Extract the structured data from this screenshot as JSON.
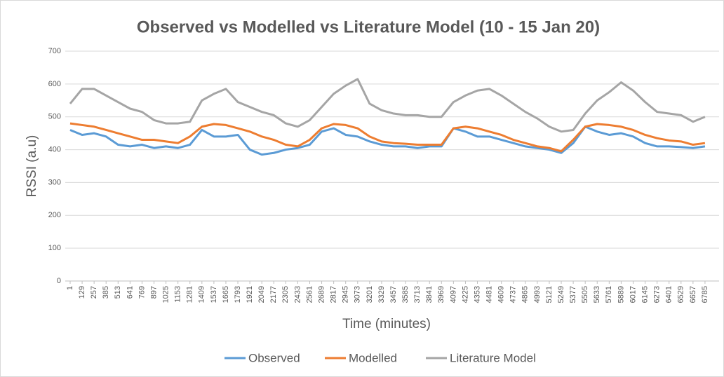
{
  "chart_data": {
    "type": "line",
    "title": "Observed vs Modelled vs Literature Model (10 - 15 Jan 20)",
    "x_label": "Time (minutes)",
    "y_label": "RSSI (a.u)",
    "x": [
      1,
      129,
      257,
      385,
      513,
      641,
      769,
      897,
      1025,
      1153,
      1281,
      1409,
      1537,
      1665,
      1793,
      1921,
      2049,
      2177,
      2305,
      2433,
      2561,
      2689,
      2817,
      2945,
      3073,
      3201,
      3329,
      3457,
      3585,
      3713,
      3841,
      3969,
      4097,
      4225,
      4353,
      4481,
      4609,
      4737,
      4865,
      4993,
      5121,
      5249,
      5377,
      5505,
      5633,
      5761,
      5889,
      6017,
      6145,
      6273,
      6401,
      6529,
      6657,
      6785
    ],
    "xticks": [
      1,
      129,
      257,
      385,
      513,
      641,
      769,
      897,
      1025,
      1153,
      1281,
      1409,
      1537,
      1665,
      1793,
      1921,
      2049,
      2177,
      2305,
      2433,
      2561,
      2689,
      2817,
      2945,
      3073,
      3201,
      3329,
      3457,
      3585,
      3713,
      3841,
      3969,
      4097,
      4225,
      4353,
      4481,
      4609,
      4737,
      4865,
      4993,
      5121,
      5249,
      5377,
      5505,
      5633,
      5761,
      5889,
      6017,
      6145,
      6273,
      6401,
      6529,
      6657,
      6785
    ],
    "xlim": [
      1,
      6913
    ],
    "ylim": [
      0,
      700
    ],
    "yticks": [
      0,
      100,
      200,
      300,
      400,
      500,
      600,
      700
    ],
    "grid": true,
    "legend": "bottom",
    "series": [
      {
        "name": "Observed",
        "color": "#5b9bd5",
        "values": [
          460,
          445,
          450,
          440,
          415,
          410,
          415,
          405,
          410,
          405,
          415,
          460,
          440,
          440,
          445,
          400,
          385,
          390,
          400,
          405,
          415,
          455,
          465,
          445,
          440,
          425,
          415,
          410,
          410,
          405,
          410,
          410,
          465,
          455,
          440,
          440,
          430,
          420,
          410,
          405,
          400,
          390,
          420,
          470,
          455,
          445,
          450,
          440,
          420,
          410,
          410,
          408,
          405,
          410
        ]
      },
      {
        "name": "Modelled",
        "color": "#ed7d31",
        "values": [
          480,
          475,
          470,
          460,
          450,
          440,
          430,
          430,
          425,
          420,
          440,
          470,
          478,
          475,
          465,
          455,
          440,
          430,
          415,
          410,
          430,
          465,
          478,
          475,
          465,
          440,
          425,
          420,
          418,
          415,
          415,
          415,
          465,
          470,
          465,
          455,
          445,
          430,
          420,
          410,
          405,
          395,
          430,
          470,
          478,
          475,
          470,
          460,
          445,
          435,
          428,
          425,
          415,
          420
        ]
      },
      {
        "name": "Literature Model",
        "color": "#a5a5a5",
        "values": [
          540,
          585,
          585,
          565,
          545,
          525,
          515,
          490,
          480,
          480,
          485,
          550,
          570,
          585,
          545,
          530,
          515,
          505,
          480,
          470,
          490,
          530,
          570,
          595,
          615,
          540,
          520,
          510,
          505,
          505,
          500,
          500,
          545,
          565,
          580,
          585,
          565,
          540,
          515,
          495,
          470,
          455,
          460,
          510,
          550,
          575,
          605,
          580,
          545,
          515,
          510,
          505,
          485,
          500
        ]
      }
    ]
  }
}
